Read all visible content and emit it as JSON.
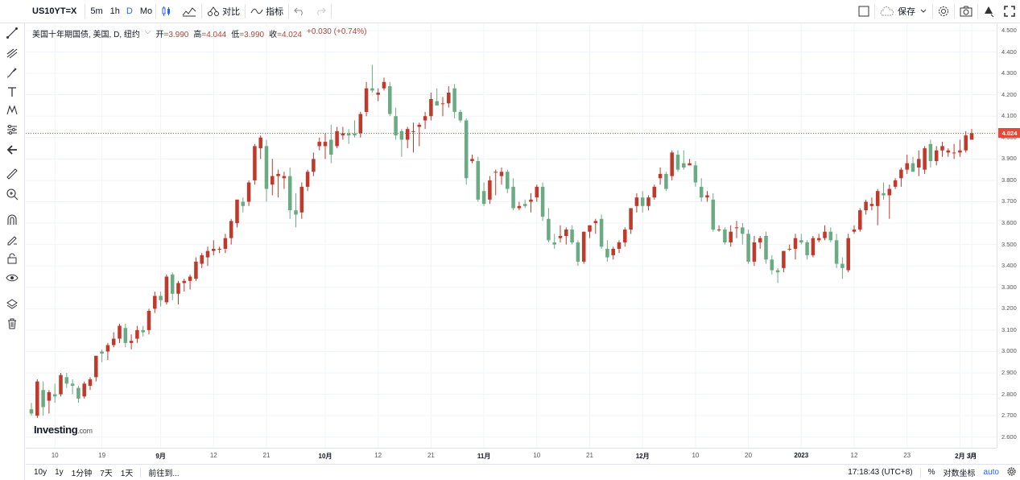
{
  "toolbar": {
    "symbol": "US10YT=X",
    "intervals": [
      "5m",
      "1h",
      "D",
      "Mo"
    ],
    "active_interval": "D",
    "compare_label": "对比",
    "indicators_label": "指标",
    "save_label": "保存"
  },
  "legend": {
    "title": "美国十年期国债, 美国, D, 纽约",
    "open_label": "开",
    "open": "=3.990",
    "high_label": "高",
    "high": "=4.044",
    "low_label": "低",
    "low": "=3.990",
    "close_label": "收",
    "close": "=4.024",
    "change": "+0.030 (+0.74%)"
  },
  "logo": {
    "name": "Investing",
    "suffix": ".com"
  },
  "price_axis": {
    "ticks": [
      "4.500",
      "4.400",
      "4.300",
      "4.200",
      "4.100",
      "4.000",
      "3.900",
      "3.800",
      "3.700",
      "3.600",
      "3.500",
      "3.400",
      "3.300",
      "3.200",
      "3.100",
      "3.000",
      "2.900",
      "2.800",
      "2.700",
      "2.600"
    ],
    "last_price": "4.024"
  },
  "time_axis": {
    "ticks": [
      "10",
      "19",
      "9月",
      "12",
      "21",
      "10月",
      "12",
      "21",
      "11月",
      "10",
      "21",
      "12月",
      "10",
      "20",
      "2023",
      "12",
      "23",
      "2月",
      "10",
      "3月"
    ]
  },
  "bottom": {
    "ranges": [
      "10y",
      "1y",
      "1分钟",
      "7天",
      "1天"
    ],
    "goto_label": "前往到...",
    "time": "17:18:43 (UTC+8)",
    "percent_label": "%",
    "log_label": "对数坐标",
    "auto_label": "auto"
  },
  "colors": {
    "up": "#c0392b",
    "down": "#6bab83",
    "last_line": "#e24a3b",
    "accent": "#2962ff"
  },
  "chart_data": {
    "type": "candlestick",
    "title": "",
    "ylim": [
      2.55,
      4.53
    ],
    "xlabels": [
      "10",
      "19",
      "9月",
      "12",
      "21",
      "10月",
      "12",
      "21",
      "11月",
      "10",
      "21",
      "12月",
      "10",
      "20",
      "2023",
      "12",
      "23",
      "2月",
      "10",
      "3月"
    ],
    "series": [
      {
        "values": [
          [
            2.73,
            2.76,
            2.7,
            2.71
          ],
          [
            2.7,
            2.87,
            2.69,
            2.86
          ],
          [
            2.82,
            2.86,
            2.7,
            2.74
          ],
          [
            2.77,
            2.82,
            2.71,
            2.81
          ],
          [
            2.8,
            2.85,
            2.76,
            2.79
          ],
          [
            2.8,
            2.9,
            2.79,
            2.89
          ],
          [
            2.88,
            2.9,
            2.83,
            2.85
          ],
          [
            2.85,
            2.87,
            2.8,
            2.84
          ],
          [
            2.83,
            2.84,
            2.76,
            2.78
          ],
          [
            2.79,
            2.86,
            2.78,
            2.85
          ],
          [
            2.84,
            2.88,
            2.82,
            2.87
          ],
          [
            2.88,
            2.98,
            2.86,
            2.98
          ],
          [
            3.0,
            3.01,
            2.95,
            2.99
          ],
          [
            3.0,
            3.04,
            2.96,
            3.03
          ],
          [
            3.03,
            3.09,
            3.02,
            3.06
          ],
          [
            3.06,
            3.13,
            3.04,
            3.12
          ],
          [
            3.11,
            3.13,
            3.02,
            3.04
          ],
          [
            3.04,
            3.08,
            3.01,
            3.05
          ],
          [
            3.06,
            3.12,
            3.04,
            3.1
          ],
          [
            3.1,
            3.12,
            3.07,
            3.09
          ],
          [
            3.1,
            3.2,
            3.08,
            3.19
          ],
          [
            3.2,
            3.28,
            3.18,
            3.26
          ],
          [
            3.26,
            3.28,
            3.21,
            3.24
          ],
          [
            3.23,
            3.36,
            3.22,
            3.35
          ],
          [
            3.36,
            3.37,
            3.24,
            3.27
          ],
          [
            3.27,
            3.33,
            3.22,
            3.32
          ],
          [
            3.32,
            3.34,
            3.28,
            3.33
          ],
          [
            3.33,
            3.36,
            3.29,
            3.35
          ],
          [
            3.34,
            3.44,
            3.33,
            3.42
          ],
          [
            3.41,
            3.46,
            3.39,
            3.45
          ],
          [
            3.44,
            3.49,
            3.4,
            3.47
          ],
          [
            3.47,
            3.52,
            3.45,
            3.48
          ],
          [
            3.48,
            3.49,
            3.46,
            3.48
          ],
          [
            3.48,
            3.55,
            3.46,
            3.53
          ],
          [
            3.53,
            3.62,
            3.5,
            3.61
          ],
          [
            3.6,
            3.7,
            3.58,
            3.71
          ],
          [
            3.7,
            3.72,
            3.65,
            3.68
          ],
          [
            3.7,
            3.8,
            3.68,
            3.79
          ],
          [
            3.8,
            3.97,
            3.78,
            3.96
          ],
          [
            3.95,
            4.01,
            3.9,
            4.0
          ],
          [
            3.96,
            3.99,
            3.7,
            3.76
          ],
          [
            3.78,
            3.9,
            3.73,
            3.82
          ],
          [
            3.82,
            3.85,
            3.72,
            3.83
          ],
          [
            3.81,
            3.84,
            3.76,
            3.82
          ],
          [
            3.82,
            3.86,
            3.62,
            3.66
          ],
          [
            3.66,
            3.74,
            3.58,
            3.64
          ],
          [
            3.65,
            3.79,
            3.62,
            3.77
          ],
          [
            3.77,
            3.85,
            3.75,
            3.84
          ],
          [
            3.84,
            3.93,
            3.82,
            3.9
          ],
          [
            3.96,
            4.0,
            3.94,
            3.98
          ],
          [
            3.96,
            4.02,
            3.9,
            3.98
          ],
          [
            3.99,
            4.06,
            3.88,
            3.92
          ],
          [
            3.96,
            4.05,
            3.95,
            4.03
          ],
          [
            4.01,
            4.05,
            3.99,
            4.02
          ],
          [
            4.02,
            4.04,
            3.97,
            4.01
          ],
          [
            4.02,
            4.08,
            4.0,
            4.01
          ],
          [
            4.02,
            4.12,
            4.0,
            4.11
          ],
          [
            4.12,
            4.26,
            4.1,
            4.23
          ],
          [
            4.23,
            4.34,
            4.21,
            4.22
          ],
          [
            4.2,
            4.23,
            4.17,
            4.21
          ],
          [
            4.23,
            4.28,
            4.22,
            4.26
          ],
          [
            4.24,
            4.26,
            4.1,
            4.11
          ],
          [
            4.1,
            4.14,
            3.99,
            4.01
          ],
          [
            4.03,
            4.04,
            3.91,
            3.99
          ],
          [
            3.99,
            4.05,
            3.95,
            4.04
          ],
          [
            4.03,
            4.07,
            3.93,
            4.03
          ],
          [
            4.05,
            4.07,
            3.96,
            4.06
          ],
          [
            4.08,
            4.12,
            4.04,
            4.1
          ],
          [
            4.1,
            4.21,
            4.08,
            4.18
          ],
          [
            4.17,
            4.23,
            4.15,
            4.15
          ],
          [
            4.16,
            4.19,
            4.1,
            4.16
          ],
          [
            4.16,
            4.24,
            4.14,
            4.21
          ],
          [
            4.23,
            4.25,
            4.09,
            4.12
          ],
          [
            4.12,
            4.13,
            4.07,
            4.08
          ],
          [
            4.08,
            4.09,
            3.78,
            3.81
          ],
          [
            3.89,
            3.92,
            3.88,
            3.9
          ],
          [
            3.89,
            3.91,
            3.7,
            3.71
          ],
          [
            3.75,
            3.79,
            3.68,
            3.69
          ],
          [
            3.71,
            3.82,
            3.69,
            3.8
          ],
          [
            3.84,
            3.85,
            3.73,
            3.84
          ],
          [
            3.82,
            3.86,
            3.78,
            3.84
          ],
          [
            3.84,
            3.85,
            3.74,
            3.76
          ],
          [
            3.77,
            3.81,
            3.66,
            3.67
          ],
          [
            3.67,
            3.7,
            3.66,
            3.68
          ],
          [
            3.69,
            3.71,
            3.67,
            3.68
          ],
          [
            3.7,
            3.74,
            3.65,
            3.71
          ],
          [
            3.72,
            3.78,
            3.7,
            3.77
          ],
          [
            3.77,
            3.79,
            3.61,
            3.63
          ],
          [
            3.62,
            3.67,
            3.51,
            3.52
          ],
          [
            3.51,
            3.55,
            3.48,
            3.5
          ],
          [
            3.53,
            3.59,
            3.51,
            3.54
          ],
          [
            3.54,
            3.58,
            3.5,
            3.57
          ],
          [
            3.57,
            3.59,
            3.5,
            3.51
          ],
          [
            3.51,
            3.52,
            3.4,
            3.42
          ],
          [
            3.42,
            3.56,
            3.41,
            3.56
          ],
          [
            3.56,
            3.59,
            3.53,
            3.59
          ],
          [
            3.6,
            3.62,
            3.55,
            3.61
          ],
          [
            3.62,
            3.64,
            3.48,
            3.49
          ],
          [
            3.48,
            3.52,
            3.42,
            3.44
          ],
          [
            3.45,
            3.49,
            3.43,
            3.48
          ],
          [
            3.48,
            3.52,
            3.46,
            3.51
          ],
          [
            3.51,
            3.58,
            3.49,
            3.57
          ],
          [
            3.57,
            3.67,
            3.55,
            3.67
          ],
          [
            3.68,
            3.74,
            3.65,
            3.72
          ],
          [
            3.72,
            3.75,
            3.65,
            3.68
          ],
          [
            3.68,
            3.73,
            3.66,
            3.72
          ],
          [
            3.72,
            3.78,
            3.71,
            3.77
          ],
          [
            3.81,
            3.86,
            3.78,
            3.83
          ],
          [
            3.83,
            3.84,
            3.75,
            3.76
          ],
          [
            3.82,
            3.94,
            3.8,
            3.93
          ],
          [
            3.92,
            3.94,
            3.84,
            3.85
          ],
          [
            3.88,
            3.94,
            3.85,
            3.86
          ],
          [
            3.87,
            3.9,
            3.87,
            3.88
          ],
          [
            3.87,
            3.89,
            3.77,
            3.79
          ],
          [
            3.77,
            3.81,
            3.7,
            3.72
          ],
          [
            3.72,
            3.75,
            3.7,
            3.73
          ],
          [
            3.71,
            3.74,
            3.56,
            3.57
          ],
          [
            3.57,
            3.59,
            3.56,
            3.57
          ],
          [
            3.57,
            3.58,
            3.5,
            3.51
          ],
          [
            3.51,
            3.59,
            3.49,
            3.56
          ],
          [
            3.58,
            3.61,
            3.53,
            3.58
          ],
          [
            3.58,
            3.6,
            3.5,
            3.55
          ],
          [
            3.55,
            3.57,
            3.41,
            3.42
          ],
          [
            3.42,
            3.54,
            3.4,
            3.51
          ],
          [
            3.51,
            3.54,
            3.48,
            3.53
          ],
          [
            3.54,
            3.56,
            3.41,
            3.43
          ],
          [
            3.43,
            3.45,
            3.36,
            3.38
          ],
          [
            3.38,
            3.39,
            3.32,
            3.37
          ],
          [
            3.39,
            3.47,
            3.37,
            3.47
          ],
          [
            3.48,
            3.5,
            3.47,
            3.48
          ],
          [
            3.48,
            3.55,
            3.43,
            3.53
          ],
          [
            3.52,
            3.55,
            3.5,
            3.51
          ],
          [
            3.51,
            3.52,
            3.43,
            3.45
          ],
          [
            3.45,
            3.54,
            3.44,
            3.53
          ],
          [
            3.52,
            3.55,
            3.51,
            3.53
          ],
          [
            3.53,
            3.59,
            3.52,
            3.56
          ],
          [
            3.56,
            3.58,
            3.51,
            3.52
          ],
          [
            3.52,
            3.55,
            3.39,
            3.41
          ],
          [
            3.41,
            3.44,
            3.34,
            3.39
          ],
          [
            3.38,
            3.55,
            3.37,
            3.53
          ],
          [
            3.56,
            3.59,
            3.55,
            3.57
          ],
          [
            3.57,
            3.67,
            3.56,
            3.66
          ],
          [
            3.66,
            3.71,
            3.64,
            3.7
          ],
          [
            3.68,
            3.72,
            3.66,
            3.69
          ],
          [
            3.68,
            3.76,
            3.59,
            3.75
          ],
          [
            3.74,
            3.79,
            3.71,
            3.73
          ],
          [
            3.73,
            3.78,
            3.62,
            3.76
          ],
          [
            3.77,
            3.81,
            3.76,
            3.8
          ],
          [
            3.81,
            3.86,
            3.77,
            3.85
          ],
          [
            3.85,
            3.92,
            3.83,
            3.88
          ],
          [
            3.88,
            3.91,
            3.84,
            3.84
          ],
          [
            3.86,
            3.94,
            3.82,
            3.9
          ],
          [
            3.85,
            3.96,
            3.83,
            3.95
          ],
          [
            3.97,
            3.99,
            3.86,
            3.89
          ],
          [
            3.89,
            3.96,
            3.87,
            3.94
          ],
          [
            3.94,
            3.98,
            3.91,
            3.96
          ],
          [
            3.93,
            3.95,
            3.91,
            3.94
          ],
          [
            3.93,
            3.97,
            3.9,
            3.93
          ],
          [
            3.93,
            3.99,
            3.91,
            3.94
          ],
          [
            3.94,
            4.03,
            3.93,
            4.01
          ],
          [
            3.99,
            4.04,
            3.99,
            4.02
          ]
        ]
      }
    ]
  }
}
